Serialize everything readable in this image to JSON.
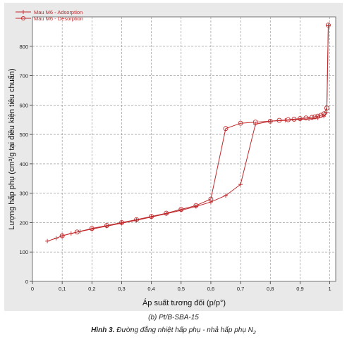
{
  "chart_data": {
    "type": "line",
    "xlabel": "Áp suất tương đối (p/p°)",
    "ylabel": "Lượng hấp phụ (cm³/g tại điều kiện tiêu chuẩn)",
    "xlim": [
      0,
      1.02
    ],
    "ylim": [
      0,
      900
    ],
    "x_ticks": [
      "0",
      "0,1",
      "0,2",
      "0,3",
      "0,4",
      "0,5",
      "0,6",
      "0,7",
      "0,8",
      "0,9",
      "1"
    ],
    "y_ticks": [
      "0",
      "100",
      "200",
      "300",
      "400",
      "500",
      "600",
      "700",
      "800"
    ],
    "grid": true,
    "legend_position": "top-left",
    "series": [
      {
        "name": "Mau M6 - Adsorption",
        "marker": "plus",
        "color": "#c0282b",
        "x": [
          0.05,
          0.08,
          0.1,
          0.13,
          0.16,
          0.2,
          0.25,
          0.3,
          0.35,
          0.4,
          0.45,
          0.5,
          0.55,
          0.6,
          0.65,
          0.7,
          0.75,
          0.8,
          0.85,
          0.9,
          0.93,
          0.96,
          0.98,
          0.99,
          0.995
        ],
        "y": [
          137,
          147,
          155,
          163,
          170,
          178,
          188,
          198,
          208,
          219,
          230,
          242,
          255,
          270,
          292,
          330,
          535,
          545,
          548,
          551,
          553,
          556,
          562,
          575,
          870
        ]
      },
      {
        "name": "Mau M6 - Desorption",
        "marker": "circle",
        "color": "#c0282b",
        "x": [
          0.995,
          0.99,
          0.98,
          0.97,
          0.96,
          0.95,
          0.94,
          0.92,
          0.9,
          0.88,
          0.86,
          0.83,
          0.8,
          0.75,
          0.7,
          0.65,
          0.6,
          0.55,
          0.5,
          0.45,
          0.4,
          0.35,
          0.3,
          0.25,
          0.2,
          0.15,
          0.1
        ],
        "y": [
          872,
          590,
          570,
          565,
          562,
          560,
          558,
          556,
          554,
          552,
          550,
          548,
          545,
          542,
          538,
          520,
          280,
          258,
          245,
          232,
          221,
          210,
          200,
          190,
          180,
          168,
          155
        ]
      }
    ]
  },
  "captions": {
    "subcaption": "(b) Pt/B-SBA-15",
    "figure_label": "Hình 3.",
    "figure_text": " Đường đẳng nhiệt hấp phụ - nhả hấp phụ N",
    "figure_sub": "2"
  }
}
